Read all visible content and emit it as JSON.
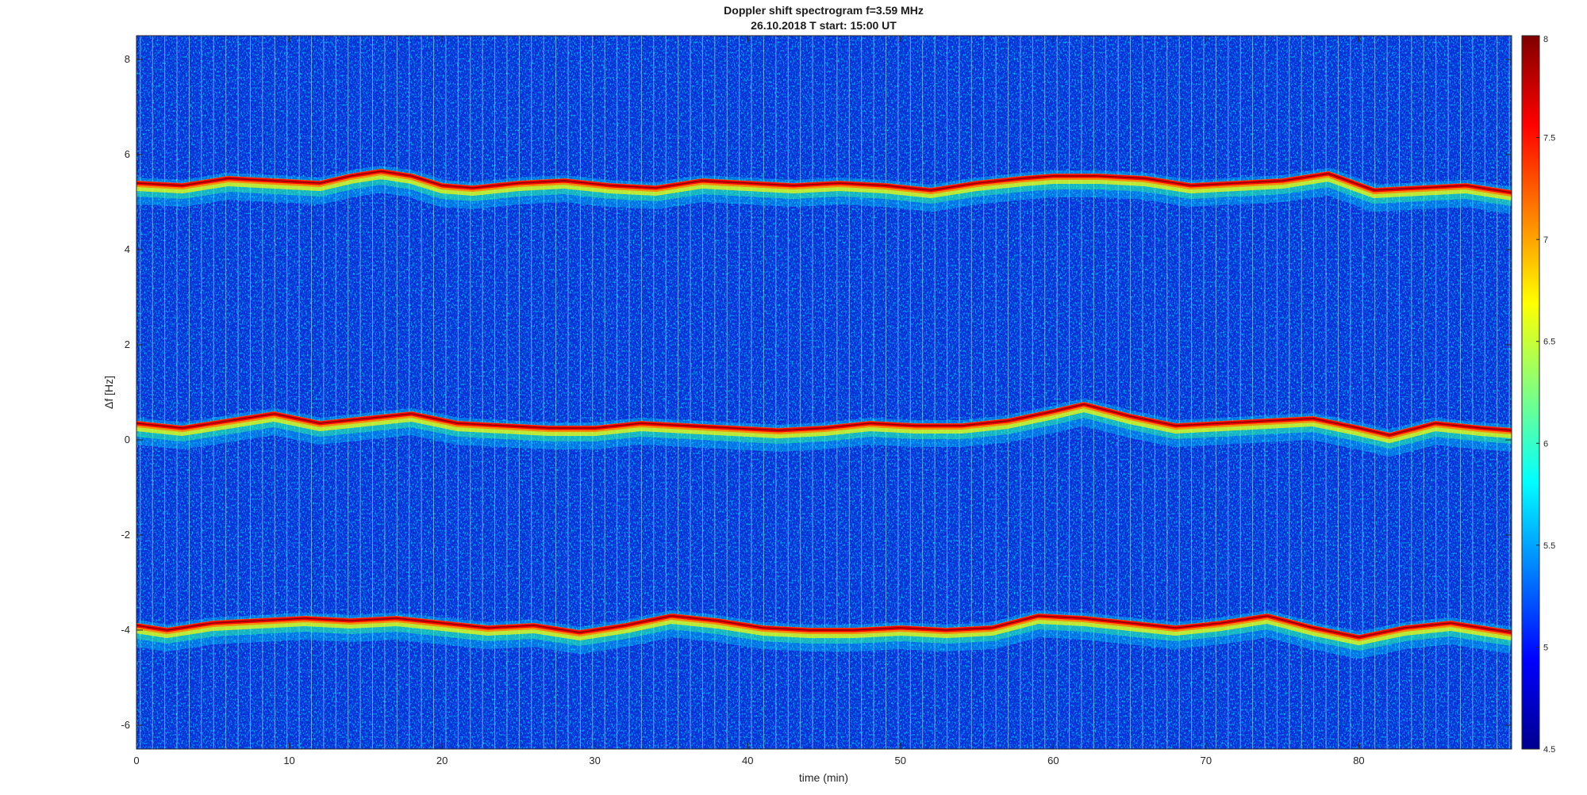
{
  "chart_data": {
    "type": "heatmap",
    "title": "Doppler shift spectrogram f=3.59 MHz",
    "subtitle": "26.10.2018   T start: 15:00 UT",
    "xlabel": "time (min)",
    "ylabel": "Δf [Hz]",
    "xlim": [
      0,
      90
    ],
    "ylim": [
      -6.5,
      8.5
    ],
    "x_ticks": [
      "0",
      "10",
      "20",
      "30",
      "40",
      "50",
      "60",
      "70",
      "80"
    ],
    "y_ticks": [
      "-6",
      "-4",
      "-2",
      "0",
      "2",
      "4",
      "6",
      "8"
    ],
    "colorbar": {
      "colormap": "jet",
      "clim": [
        4.5,
        8
      ],
      "ticks": [
        "4.5",
        "5",
        "5.5",
        "6",
        "6.5",
        "7",
        "7.5",
        "8"
      ]
    },
    "series": [
      {
        "x": [
          0,
          3,
          6,
          9,
          12,
          14,
          16,
          18,
          20,
          22,
          25,
          28,
          31,
          34,
          37,
          40,
          43,
          46,
          49,
          52,
          55,
          58,
          60,
          63,
          66,
          69,
          72,
          75,
          78,
          81,
          84,
          87,
          90
        ],
        "values": [
          5.4,
          5.35,
          5.5,
          5.45,
          5.4,
          5.55,
          5.65,
          5.55,
          5.35,
          5.3,
          5.4,
          5.45,
          5.35,
          5.3,
          5.45,
          5.4,
          5.35,
          5.4,
          5.35,
          5.25,
          5.4,
          5.5,
          5.55,
          5.55,
          5.5,
          5.35,
          5.4,
          5.45,
          5.6,
          5.25,
          5.3,
          5.35,
          5.2
        ]
      },
      {
        "x": [
          0,
          3,
          6,
          9,
          12,
          15,
          18,
          21,
          24,
          27,
          30,
          33,
          36,
          39,
          42,
          45,
          48,
          51,
          54,
          57,
          60,
          62,
          65,
          68,
          71,
          74,
          77,
          80,
          82,
          85,
          88,
          90
        ],
        "values": [
          0.35,
          0.25,
          0.4,
          0.55,
          0.35,
          0.45,
          0.55,
          0.35,
          0.3,
          0.25,
          0.25,
          0.35,
          0.3,
          0.25,
          0.2,
          0.25,
          0.35,
          0.3,
          0.3,
          0.4,
          0.6,
          0.75,
          0.5,
          0.3,
          0.35,
          0.4,
          0.45,
          0.25,
          0.1,
          0.35,
          0.25,
          0.2
        ]
      },
      {
        "x": [
          0,
          2,
          5,
          8,
          11,
          14,
          17,
          20,
          23,
          26,
          29,
          32,
          35,
          38,
          41,
          44,
          47,
          50,
          53,
          56,
          59,
          62,
          65,
          68,
          71,
          74,
          77,
          80,
          83,
          86,
          88,
          90
        ],
        "values": [
          -3.9,
          -4.0,
          -3.85,
          -3.8,
          -3.75,
          -3.8,
          -3.75,
          -3.85,
          -3.95,
          -3.9,
          -4.05,
          -3.9,
          -3.7,
          -3.8,
          -3.95,
          -4.0,
          -4.0,
          -3.95,
          -4.0,
          -3.95,
          -3.7,
          -3.75,
          -3.85,
          -3.95,
          -3.85,
          -3.7,
          -3.95,
          -4.15,
          -3.95,
          -3.85,
          -3.95,
          -4.05
        ]
      }
    ]
  }
}
